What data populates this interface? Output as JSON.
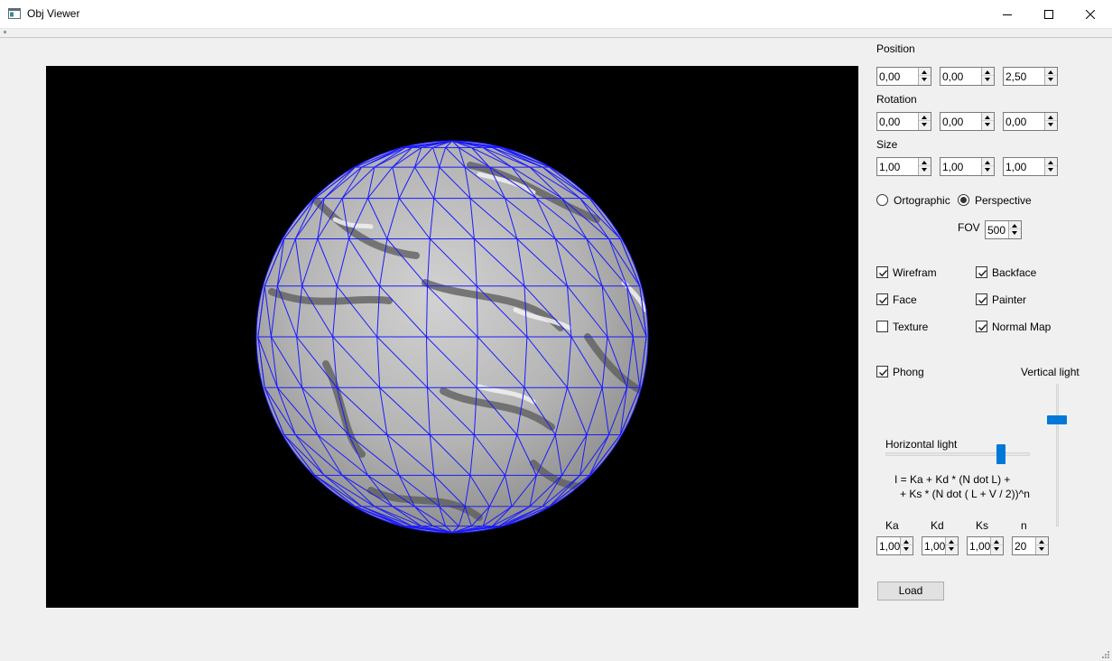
{
  "window": {
    "title": "Obj Viewer"
  },
  "controls": {
    "position": {
      "label": "Position",
      "x": "0,00",
      "y": "0,00",
      "z": "2,50"
    },
    "rotation": {
      "label": "Rotation",
      "x": "0,00",
      "y": "0,00",
      "z": "0,00"
    },
    "size": {
      "label": "Size",
      "x": "1,00",
      "y": "1,00",
      "z": "1,00"
    },
    "projection": {
      "ortographic_label": "Ortographic",
      "perspective_label": "Perspective",
      "selected": "Perspective"
    },
    "fov": {
      "label": "FOV",
      "value": "500"
    },
    "options": {
      "wireframe": {
        "label": "Wirefram",
        "checked": true
      },
      "backface": {
        "label": "Backface",
        "checked": true
      },
      "face": {
        "label": "Face",
        "checked": true
      },
      "painter": {
        "label": "Painter",
        "checked": true
      },
      "texture": {
        "label": "Texture",
        "checked": false
      },
      "normal_map": {
        "label": "Normal Map",
        "checked": true
      },
      "phong": {
        "label": "Phong",
        "checked": true
      }
    },
    "vertical_light": {
      "label": "Vertical light",
      "level": 0.75
    },
    "horizontal_light": {
      "label": "Horizontal light",
      "level": 0.8
    },
    "formula": {
      "line1": "I = Ka + Kd * (N dot L) +",
      "line2": "+ Ks * (N dot ( L + V / 2))^n"
    },
    "coefficients": {
      "ka": {
        "label": "Ka",
        "value": "1,00"
      },
      "kd": {
        "label": "Kd",
        "value": "1,00"
      },
      "ks": {
        "label": "Ks",
        "value": "1,00"
      },
      "n": {
        "label": "n",
        "value": "20"
      }
    },
    "load_button": "Load"
  },
  "colors": {
    "accent": "#0078d7",
    "wireframe": "#1a1aff",
    "viewport_bg": "#000000"
  },
  "icons": [
    "app-icon",
    "minimize-icon",
    "maximize-icon",
    "close-icon",
    "resize-grip-icon"
  ]
}
